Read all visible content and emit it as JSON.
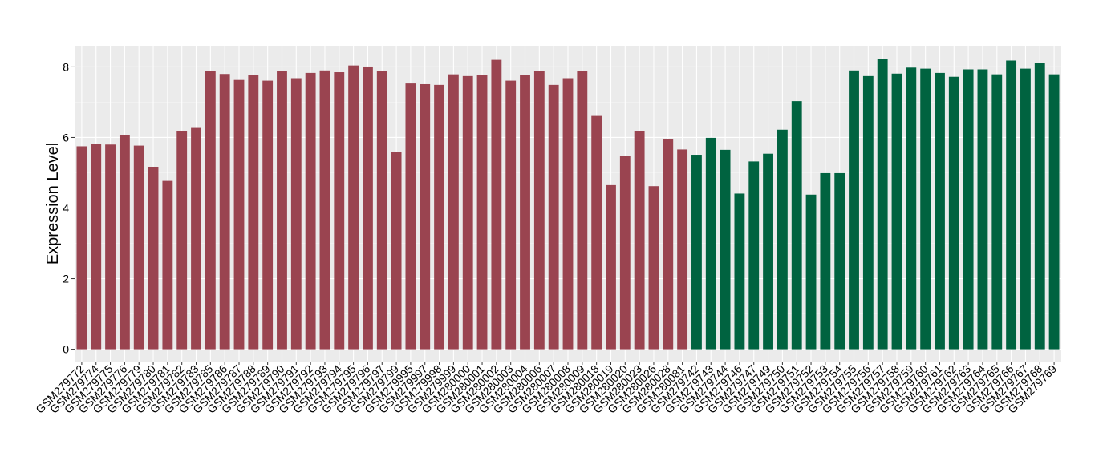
{
  "chart_data": {
    "type": "bar",
    "title": "",
    "xlabel": "",
    "ylabel": "Expression Level",
    "ylim": [
      -0.35,
      8.6
    ],
    "yticks": [
      0,
      2,
      4,
      6,
      8
    ],
    "grid": true,
    "legend": "none",
    "colors": {
      "group1": "#9a4450",
      "group2": "#006340",
      "panel": "#ebebeb",
      "gridline": "#ffffff"
    },
    "categories": [
      "GSM279772",
      "GSM279774",
      "GSM279775",
      "GSM279776",
      "GSM279779",
      "GSM279780",
      "GSM279781",
      "GSM279782",
      "GSM279783",
      "GSM279785",
      "GSM279786",
      "GSM279787",
      "GSM279788",
      "GSM279789",
      "GSM279790",
      "GSM279791",
      "GSM279792",
      "GSM279793",
      "GSM279794",
      "GSM279795",
      "GSM279796",
      "GSM279797",
      "GSM279799",
      "GSM279995",
      "GSM279997",
      "GSM279998",
      "GSM279999",
      "GSM280000",
      "GSM280001",
      "GSM280002",
      "GSM280003",
      "GSM280004",
      "GSM280006",
      "GSM280007",
      "GSM280008",
      "GSM280009",
      "GSM280018",
      "GSM280019",
      "GSM280020",
      "GSM280023",
      "GSM280026",
      "GSM280028",
      "GSM280081",
      "GSM279742",
      "GSM279743",
      "GSM279744",
      "GSM279746",
      "GSM279747",
      "GSM279749",
      "GSM279750",
      "GSM279751",
      "GSM279752",
      "GSM279753",
      "GSM279754",
      "GSM279755",
      "GSM279756",
      "GSM279757",
      "GSM279758",
      "GSM279759",
      "GSM279760",
      "GSM279761",
      "GSM279762",
      "GSM279763",
      "GSM279764",
      "GSM279765",
      "GSM279766",
      "GSM279767",
      "GSM279768",
      "GSM279769"
    ],
    "values": [
      5.75,
      5.82,
      5.8,
      6.06,
      5.77,
      5.17,
      4.77,
      6.18,
      6.27,
      7.88,
      7.8,
      7.63,
      7.76,
      7.61,
      7.88,
      7.68,
      7.83,
      7.9,
      7.85,
      8.04,
      8.01,
      7.88,
      5.6,
      7.53,
      7.51,
      7.49,
      7.79,
      7.74,
      7.76,
      8.2,
      7.61,
      7.76,
      7.88,
      7.49,
      7.68,
      7.88,
      6.61,
      4.65,
      5.47,
      6.18,
      4.62,
      5.96,
      5.66,
      5.51,
      5.99,
      5.65,
      4.41,
      5.32,
      5.54,
      6.22,
      7.03,
      4.38,
      4.99,
      4.99,
      7.9,
      7.74,
      8.22,
      7.81,
      7.98,
      7.95,
      7.83,
      7.72,
      7.93,
      7.93,
      7.79,
      8.18,
      7.95,
      8.11,
      7.79
    ],
    "groups": [
      1,
      1,
      1,
      1,
      1,
      1,
      1,
      1,
      1,
      1,
      1,
      1,
      1,
      1,
      1,
      1,
      1,
      1,
      1,
      1,
      1,
      1,
      1,
      1,
      1,
      1,
      1,
      1,
      1,
      1,
      1,
      1,
      1,
      1,
      1,
      1,
      1,
      1,
      1,
      1,
      1,
      1,
      1,
      2,
      2,
      2,
      2,
      2,
      2,
      2,
      2,
      2,
      2,
      2,
      2,
      2,
      2,
      2,
      2,
      2,
      2,
      2,
      2,
      2,
      2,
      2,
      2,
      2,
      2
    ]
  }
}
